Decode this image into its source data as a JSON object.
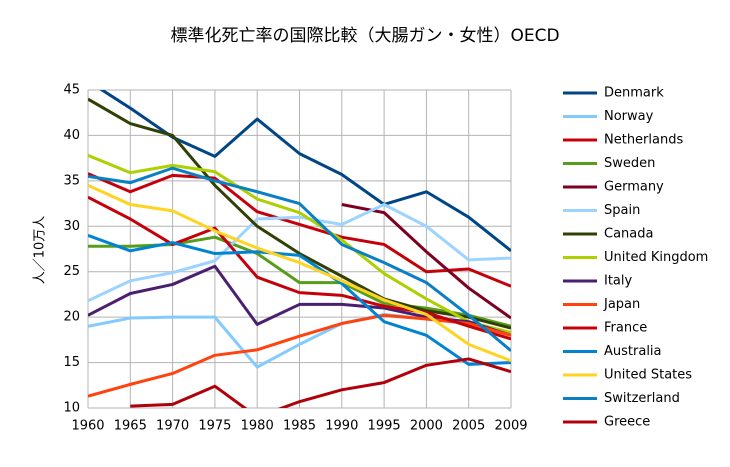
{
  "chart_data": {
    "type": "line",
    "title": "標準化死亡率の国際比較（大腸ガン・女性）OECD",
    "y_label": "人／10万人",
    "categories": [
      "1960",
      "1965",
      "1970",
      "1975",
      "1980",
      "1985",
      "1990",
      "1995",
      "2000",
      "2005",
      "2009"
    ],
    "ylim": [
      10,
      45
    ],
    "yticks": [
      10,
      15,
      20,
      25,
      30,
      35,
      40,
      45
    ],
    "grid": true,
    "legend": "right",
    "series": [
      {
        "name": "Denmark",
        "color": "#004586",
        "values": [
          46,
          43,
          39.8,
          37.7,
          41.8,
          38,
          35.7,
          32.4,
          33.8,
          31,
          27.3
        ]
      },
      {
        "name": "Norway",
        "color": "#83caff",
        "values": [
          19,
          19.9,
          20,
          20,
          14.5,
          17,
          19.3,
          20.3,
          19.8,
          19.3,
          18
        ]
      },
      {
        "name": "Netherlands",
        "color": "#c5000b",
        "values": [
          35.8,
          33.8,
          35.6,
          35.3,
          31.6,
          30.2,
          28.8,
          28,
          25,
          25.3,
          23.4
        ]
      },
      {
        "name": "Sweden",
        "color": "#579d1c",
        "values": [
          27.8,
          27.8,
          28,
          28.8,
          27,
          23.8,
          23.8,
          21.5,
          21,
          20.2,
          19
        ]
      },
      {
        "name": "Germany",
        "color": "#7e0021",
        "values": [
          null,
          null,
          null,
          null,
          null,
          null,
          32.4,
          31.5,
          27.2,
          23.2,
          19.9
        ]
      },
      {
        "name": "Spain",
        "color": "#9cd3ff",
        "values": [
          21.8,
          24,
          24.9,
          26.2,
          30.8,
          31,
          30.2,
          32.4,
          30,
          26.3,
          26.5
        ]
      },
      {
        "name": "Canada",
        "color": "#314004",
        "values": [
          44,
          41.3,
          40,
          34.5,
          30,
          27,
          24.5,
          22,
          20.7,
          20,
          18.8
        ]
      },
      {
        "name": "United Kingdom",
        "color": "#aecf00",
        "values": [
          37.8,
          35.9,
          36.7,
          36,
          33,
          31.5,
          28.5,
          24.8,
          22,
          19.5,
          18.3
        ]
      },
      {
        "name": "Italy",
        "color": "#4b1f6f",
        "values": [
          20.2,
          22.6,
          23.6,
          25.6,
          19.2,
          21.4,
          21.4,
          21,
          20,
          19.5,
          18
        ]
      },
      {
        "name": "Japan",
        "color": "#ff420e",
        "values": [
          11.3,
          12.6,
          13.8,
          15.8,
          16.4,
          17.9,
          19.3,
          20.2,
          19.8,
          19.3,
          18
        ]
      },
      {
        "name": "France",
        "color": "#c5000b",
        "values": [
          33.2,
          30.8,
          28,
          29.8,
          24.4,
          22.7,
          22.4,
          21.2,
          20.5,
          19,
          17.6
        ]
      },
      {
        "name": "Australia",
        "color": "#0084d1",
        "values": [
          29,
          27.3,
          28.2,
          27,
          27.2,
          26.8,
          23.7,
          19.5,
          18,
          14.8,
          15
        ]
      },
      {
        "name": "United States",
        "color": "#ffd320",
        "values": [
          34.5,
          32.4,
          31.7,
          29.5,
          27.6,
          26,
          24,
          21.9,
          20.3,
          17,
          15.2
        ]
      },
      {
        "name": "Switzerland",
        "color": "#0a7fc4",
        "values": [
          35.5,
          34.8,
          36.4,
          35,
          33.8,
          32.5,
          28,
          26,
          23.8,
          20.2,
          16.3
        ]
      },
      {
        "name": "Greece",
        "color": "#b0000a",
        "values": [
          null,
          10.2,
          10.4,
          12.4,
          9,
          10.7,
          12,
          12.8,
          14.7,
          15.4,
          14
        ]
      }
    ]
  }
}
